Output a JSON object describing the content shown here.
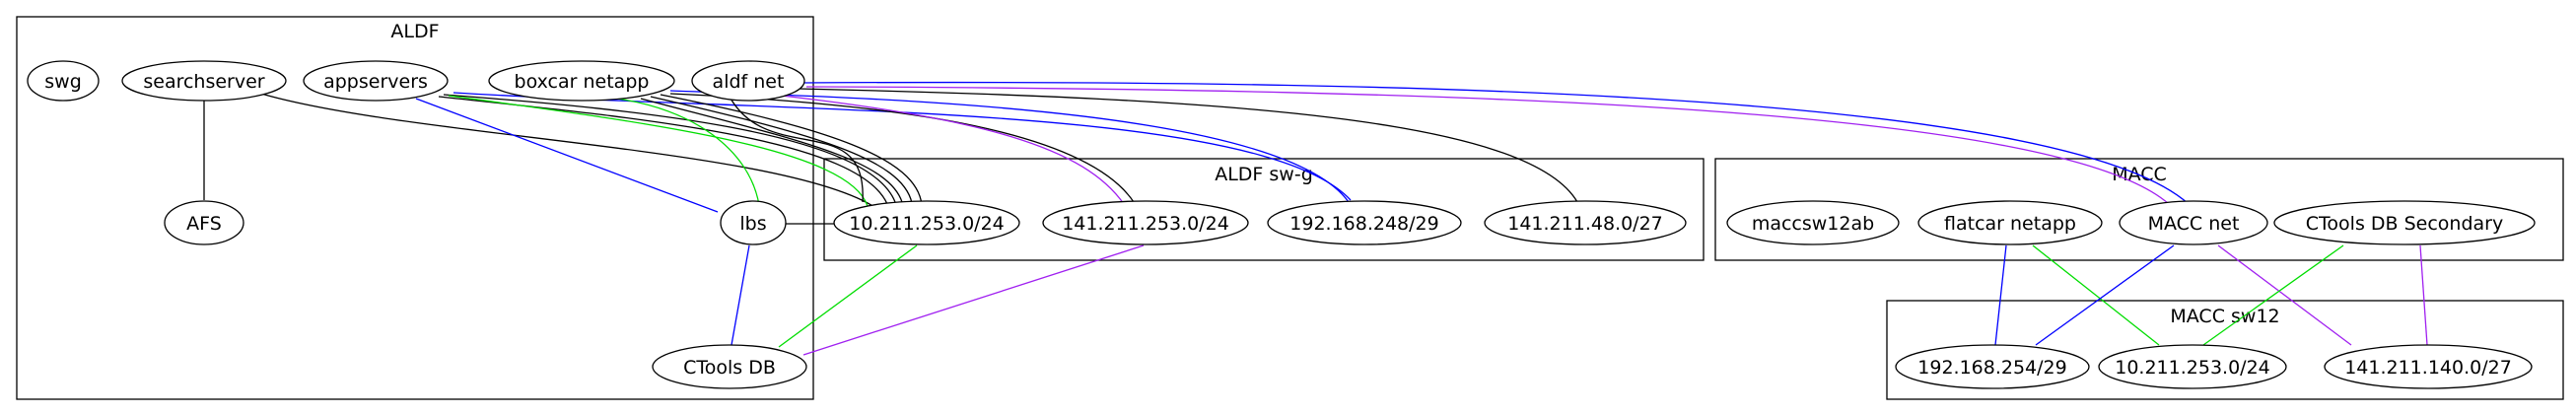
{
  "clusters": {
    "aldf": {
      "label": "ALDF"
    },
    "aldf_swg": {
      "label": "ALDF sw-g"
    },
    "macc": {
      "label": "MACC"
    },
    "macc_sw12": {
      "label": "MACC sw12"
    }
  },
  "nodes": {
    "swg": {
      "label": "swg"
    },
    "searchserver": {
      "label": "searchserver"
    },
    "appservers": {
      "label": "appservers"
    },
    "boxcar_netapp": {
      "label": "boxcar netapp"
    },
    "aldf_net": {
      "label": "aldf net"
    },
    "afs": {
      "label": "AFS"
    },
    "lbs": {
      "label": "lbs"
    },
    "ctools_db": {
      "label": "CTools DB"
    },
    "aldf_10_211": {
      "label": "10.211.253.0/24"
    },
    "aldf_141_211_253": {
      "label": "141.211.253.0/24"
    },
    "aldf_192_168_248": {
      "label": "192.168.248/29"
    },
    "aldf_141_211_48": {
      "label": "141.211.48.0/27"
    },
    "maccsw12ab": {
      "label": "maccsw12ab"
    },
    "flatcar_netapp": {
      "label": "flatcar netapp"
    },
    "macc_net": {
      "label": "MACC net"
    },
    "ctools_db_secondary": {
      "label": "CTools DB Secondary"
    },
    "macc_192_168_254": {
      "label": "192.168.254/29"
    },
    "macc_10_211": {
      "label": "10.211.253.0/24"
    },
    "macc_141_211_140": {
      "label": "141.211.140.0/27"
    }
  },
  "colors": {
    "black": "#000000",
    "blue": "#0000ff",
    "green": "#00dd00",
    "purple": "#a020f0"
  }
}
